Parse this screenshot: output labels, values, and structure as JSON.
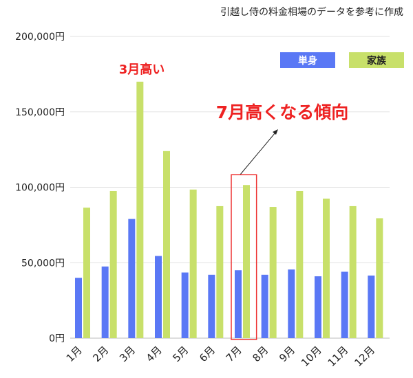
{
  "chart_data": {
    "type": "bar",
    "title": "引越し侍の料金相場のデータを参考に作成",
    "xlabel": "",
    "ylabel": "",
    "categories": [
      "1月",
      "2月",
      "3月",
      "4月",
      "5月",
      "6月",
      "7月",
      "8月",
      "9月",
      "10月",
      "11月",
      "12月"
    ],
    "series": [
      {
        "name": "単身",
        "color": "#5a78f5",
        "values": [
          40000,
          47500,
          79000,
          54500,
          43500,
          42000,
          45000,
          42000,
          45500,
          41000,
          44000,
          41500
        ]
      },
      {
        "name": "家族",
        "color": "#c8e06a",
        "values": [
          86500,
          97500,
          170000,
          124000,
          98500,
          87500,
          101500,
          87000,
          97500,
          92500,
          87500,
          79500
        ]
      }
    ],
    "ylim": [
      0,
      200000
    ],
    "yticks": [
      0,
      50000,
      100000,
      150000,
      200000
    ],
    "ytick_labels": [
      "0円",
      "50,000円",
      "100,000円",
      "150,000円",
      "200,000円"
    ],
    "grid": true,
    "legend": "top-right",
    "annotations": [
      {
        "text": "3月高い",
        "color": "#ee2222"
      },
      {
        "text": "7月高くなる傾向",
        "color": "#ee2222"
      }
    ],
    "highlight_category": "7月",
    "highlight_color": "#ee3333"
  }
}
